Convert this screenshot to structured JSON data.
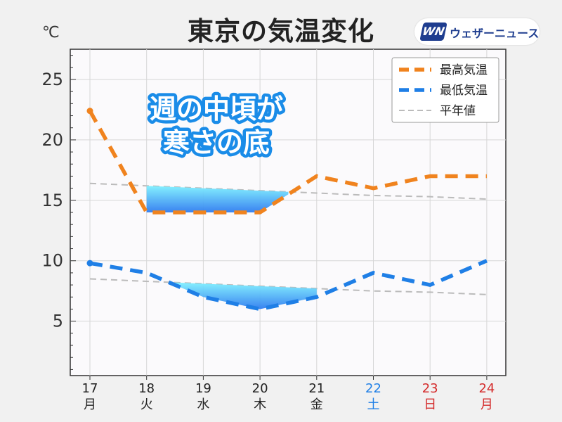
{
  "title": "東京の気温変化",
  "unit_label": "℃",
  "logo": {
    "mark": "WN",
    "text": "ウェザーニュース"
  },
  "callout": {
    "line1": "週の中頃が",
    "line2": "寒さの底"
  },
  "colors": {
    "high": "#f0831e",
    "low": "#1f7fe6",
    "normal": "#bbbbbb",
    "saturday": "#1f7fe6",
    "sunday": "#d42a2a",
    "weekday": "#222222"
  },
  "chart_data": {
    "type": "line",
    "title": "東京の気温変化",
    "ylabel": "℃",
    "ylim": [
      0.5,
      27.5
    ],
    "yticks": [
      5,
      10,
      15,
      20,
      25
    ],
    "categories": [
      {
        "day": "17",
        "dow": "月",
        "kind": "weekday"
      },
      {
        "day": "18",
        "dow": "火",
        "kind": "weekday"
      },
      {
        "day": "19",
        "dow": "水",
        "kind": "weekday"
      },
      {
        "day": "20",
        "dow": "木",
        "kind": "weekday"
      },
      {
        "day": "21",
        "dow": "金",
        "kind": "weekday"
      },
      {
        "day": "22",
        "dow": "土",
        "kind": "saturday"
      },
      {
        "day": "23",
        "dow": "日",
        "kind": "sunday"
      },
      {
        "day": "24",
        "dow": "月",
        "kind": "sunday"
      }
    ],
    "series": [
      {
        "name": "最高気温",
        "color": "#f0831e",
        "style": "dashed",
        "values": [
          22.4,
          14.0,
          14.0,
          14.0,
          17.0,
          16.0,
          17.0,
          17.0
        ]
      },
      {
        "name": "最低気温",
        "color": "#1f7fe6",
        "style": "dashed",
        "values": [
          9.8,
          9.0,
          7.0,
          6.0,
          7.0,
          9.0,
          8.0,
          10.0
        ]
      },
      {
        "name": "平年値",
        "color": "#bbbbbb",
        "style": "dashed-thin",
        "values": [
          16.4,
          16.2,
          16.0,
          15.8,
          15.6,
          15.4,
          15.3,
          15.1
        ]
      },
      {
        "name": "平年値",
        "color": "#bbbbbb",
        "style": "dashed-thin",
        "values": [
          8.5,
          8.3,
          8.1,
          7.9,
          7.7,
          7.5,
          7.4,
          7.2
        ]
      }
    ],
    "grid": true,
    "legend": "top-right"
  }
}
